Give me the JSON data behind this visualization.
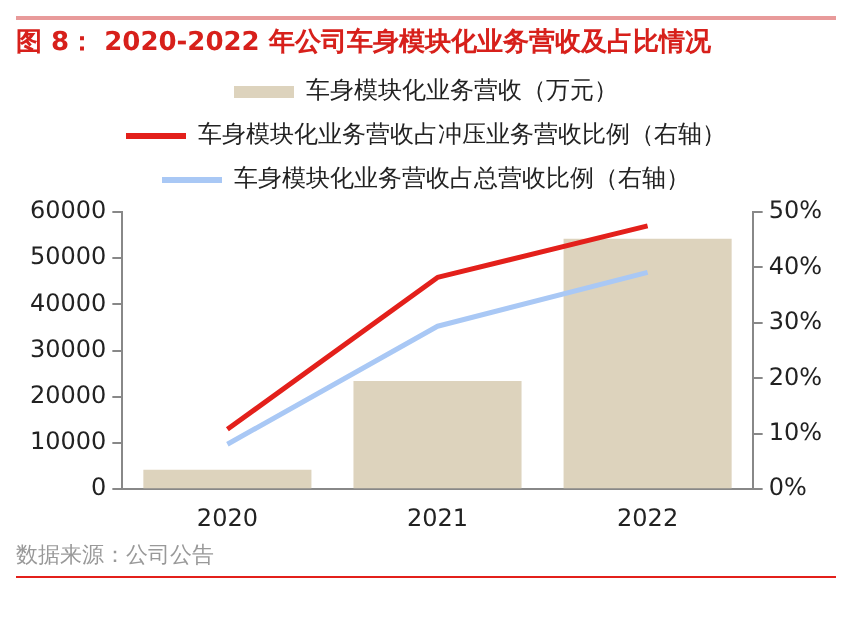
{
  "chart_data": {
    "type": "bar",
    "title": "图 8： 2020-2022 年公司车身模块化业务营收及占比情况",
    "categories": [
      "2020",
      "2021",
      "2022"
    ],
    "series": [
      {
        "name": "车身模块化业务营收（万元）",
        "color": "#ddd3bd",
        "values": [
          4200,
          23400,
          54200
        ]
      },
      {
        "name": "车身模块化业务营收占冲压业务营收比例（右轴）",
        "type": "line",
        "axis": "y2",
        "color": "#e3201b",
        "values": [
          10.8,
          38.2,
          47.5
        ]
      },
      {
        "name": "车身模块化业务营收占总营收比例（右轴）",
        "type": "line",
        "axis": "y2",
        "color": "#a9c8f5",
        "values": [
          8.1,
          29.4,
          39.1
        ]
      }
    ],
    "ylim": [
      0,
      60000
    ],
    "yticks": [
      0,
      10000,
      20000,
      30000,
      40000,
      50000,
      60000
    ],
    "y2lim": [
      0,
      50
    ],
    "y2ticks": [
      {
        "value": 0,
        "label": "0%"
      },
      {
        "value": 10,
        "label": "10%"
      },
      {
        "value": 20,
        "label": "20%"
      },
      {
        "value": 30,
        "label": "30%"
      },
      {
        "value": 40,
        "label": "40%"
      },
      {
        "value": 50,
        "label": "50%"
      }
    ],
    "grid": false,
    "legend": "top",
    "marker": "none",
    "annotations": [
      "数据来源：公司公告"
    ]
  }
}
